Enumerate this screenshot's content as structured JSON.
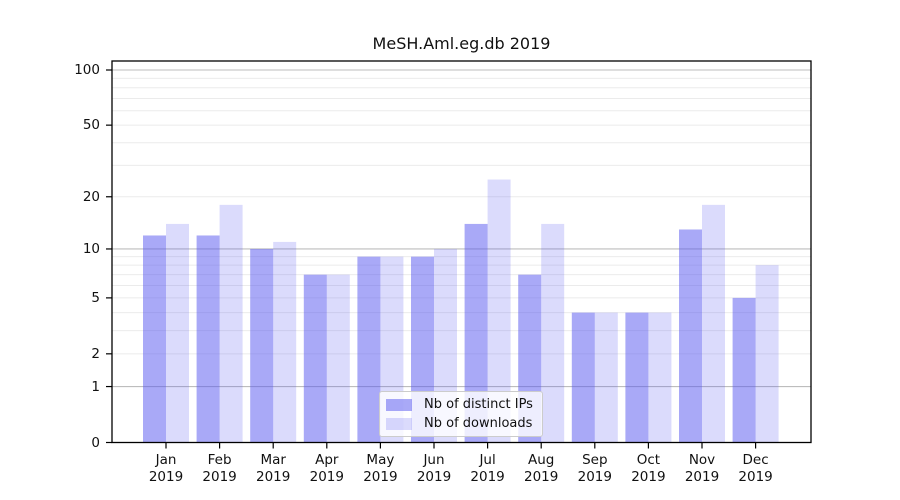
{
  "title": "MeSH.Aml.eg.db 2019",
  "chart_data": {
    "type": "bar",
    "title": "MeSH.Aml.eg.db 2019",
    "categories": [
      "Jan 2019",
      "Feb 2019",
      "Mar 2019",
      "Apr 2019",
      "May 2019",
      "Jun 2019",
      "Jul 2019",
      "Aug 2019",
      "Sep 2019",
      "Oct 2019",
      "Nov 2019",
      "Dec 2019"
    ],
    "x_tick_months": [
      "Jan",
      "Feb",
      "Mar",
      "Apr",
      "May",
      "Jun",
      "Jul",
      "Aug",
      "Sep",
      "Oct",
      "Nov",
      "Dec"
    ],
    "x_tick_year": "2019",
    "series": [
      {
        "name": "Nb of distinct IPs",
        "color": "rgba(90,90,240,0.52)",
        "values": [
          12,
          12,
          10,
          7,
          9,
          9,
          14,
          7,
          4,
          4,
          13,
          5
        ]
      },
      {
        "name": "Nb of downloads",
        "color": "rgba(90,90,240,0.22)",
        "values": [
          14,
          18,
          11,
          7,
          9,
          10,
          25,
          14,
          4,
          4,
          18,
          8
        ]
      }
    ],
    "xlabel": "",
    "ylabel": "",
    "y_scale": "log1p",
    "ylim": [
      0,
      100
    ],
    "y_ticks": [
      0,
      1,
      2,
      5,
      10,
      20,
      50,
      100
    ],
    "y_tick_labels": [
      "0",
      "1",
      "2",
      "5",
      "10",
      "20",
      "50",
      "100"
    ],
    "grid": true,
    "grid_major_values": [
      1,
      10,
      100
    ],
    "grid_minor_values": [
      2,
      3,
      4,
      5,
      6,
      7,
      8,
      9,
      20,
      30,
      40,
      50,
      60,
      70,
      80,
      90
    ],
    "legend_position": "bottom-center",
    "colors": {
      "frame": "#000000",
      "grid_major": "#bdbdbd",
      "grid_minor": "#ebebeb",
      "text": "#111111",
      "background": "#ffffff"
    }
  }
}
